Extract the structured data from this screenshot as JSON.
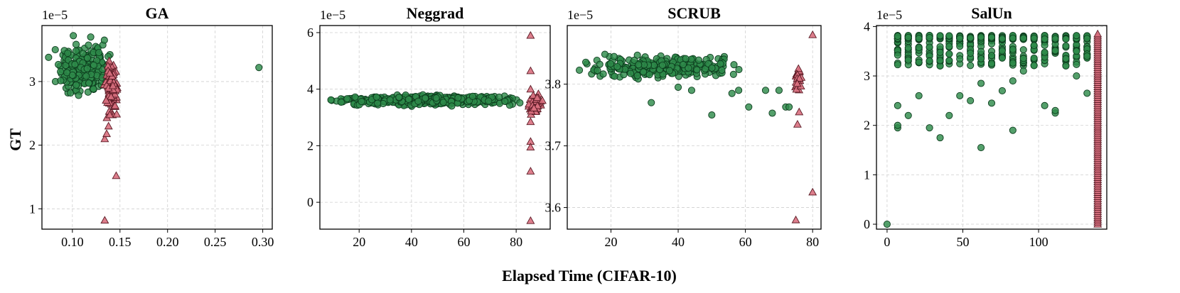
{
  "figure": {
    "xlabel": "Elapsed Time (CIFAR-10)",
    "ylabel": "GT"
  },
  "colors": {
    "green_fill": "#2e8b4a",
    "green_edge": "#0d3d1e",
    "red_fill": "#d9707f",
    "red_edge": "#5a1a24",
    "grid": "#cfcfcf"
  },
  "chart_data": [
    {
      "type": "scatter",
      "title": "GA",
      "y_scale_label": "1e−5",
      "xlim": [
        0.068,
        0.31
      ],
      "ylim": [
        0.68,
        3.88
      ],
      "xticks": [
        0.1,
        0.15,
        0.2,
        0.25,
        0.3
      ],
      "xtick_labels": [
        "0.10",
        "0.15",
        "0.20",
        "0.25",
        "0.30"
      ],
      "yticks": [
        1,
        2,
        3
      ],
      "ytick_labels": [
        "1",
        "2",
        "3"
      ],
      "series": [
        {
          "name": "green",
          "marker": "circle",
          "cluster": {
            "x": [
              0.08,
              0.143
            ],
            "y": [
              2.65,
              3.75
            ],
            "n": 230
          },
          "points": [
            [
              0.296,
              3.22
            ],
            [
              0.075,
              3.38
            ],
            [
              0.082,
              3.5
            ],
            [
              0.098,
              2.82
            ],
            [
              0.1,
              3.1
            ]
          ]
        },
        {
          "name": "red",
          "marker": "triangle",
          "cluster": {
            "x": [
              0.133,
              0.148
            ],
            "y": [
              2.25,
              3.55
            ],
            "n": 90
          },
          "points": [
            [
              0.134,
              0.82
            ],
            [
              0.146,
              1.52
            ],
            [
              0.134,
              2.1
            ],
            [
              0.136,
              2.18
            ],
            [
              0.138,
              2.3
            ]
          ]
        }
      ]
    },
    {
      "type": "scatter",
      "title": "Neggrad",
      "y_scale_label": "1e−5",
      "xlim": [
        5,
        93
      ],
      "ylim": [
        -0.95,
        6.25
      ],
      "xticks": [
        20,
        40,
        60,
        80
      ],
      "xtick_labels": [
        "20",
        "40",
        "60",
        "80"
      ],
      "yticks": [
        0,
        2,
        4,
        6
      ],
      "ytick_labels": [
        "0",
        "2",
        "4",
        "6"
      ],
      "series": [
        {
          "name": "green",
          "marker": "circle",
          "cluster": {
            "x": [
              8,
              85
            ],
            "y": [
              3.35,
              3.85
            ],
            "n": 380
          },
          "points": []
        },
        {
          "name": "red",
          "marker": "triangle",
          "cluster": {
            "x": [
              84.5,
              90
            ],
            "y": [
              3.0,
              3.9
            ],
            "n": 60
          },
          "points": [
            [
              85.5,
              5.9
            ],
            [
              85.5,
              4.65
            ],
            [
              85.5,
              2.85
            ],
            [
              85.5,
              2.15
            ],
            [
              85.5,
              1.95
            ],
            [
              85.5,
              1.1
            ],
            [
              85.5,
              -0.65
            ],
            [
              85.5,
              4.0
            ],
            [
              88,
              3.7
            ],
            [
              90,
              3.6
            ]
          ]
        }
      ]
    },
    {
      "type": "scatter",
      "title": "SCRUB",
      "y_scale_label": "1e−5",
      "xlim": [
        7,
        82.5
      ],
      "ylim": [
        3.565,
        3.895
      ],
      "xticks": [
        20,
        40,
        60,
        80
      ],
      "xtick_labels": [
        "20",
        "40",
        "60",
        "80"
      ],
      "yticks": [
        3.6,
        3.7,
        3.8
      ],
      "ytick_labels": [
        "3.6",
        "3.7",
        "3.8"
      ],
      "series": [
        {
          "name": "green",
          "marker": "circle",
          "cluster": {
            "x": [
              9,
              62
            ],
            "y": [
              3.805,
              3.85
            ],
            "n": 300
          },
          "points": [
            [
              32,
              3.77
            ],
            [
              50,
              3.75
            ],
            [
              61,
              3.763
            ],
            [
              68,
              3.753
            ],
            [
              72,
              3.763
            ],
            [
              73,
              3.763
            ],
            [
              66,
              3.79
            ],
            [
              70,
              3.79
            ],
            [
              58,
              3.79
            ],
            [
              56,
              3.785
            ],
            [
              44,
              3.79
            ],
            [
              40,
              3.795
            ]
          ]
        },
        {
          "name": "red",
          "marker": "triangle",
          "cluster": {
            "x": [
              74.5,
              77
            ],
            "y": [
              3.785,
              3.83
            ],
            "n": 25
          },
          "points": [
            [
              80,
              3.88
            ],
            [
              76,
              3.755
            ],
            [
              75.5,
              3.735
            ],
            [
              80,
              3.625
            ],
            [
              75,
              3.58
            ]
          ]
        }
      ]
    },
    {
      "type": "scatter",
      "title": "SalUn",
      "y_scale_label": "1e−5",
      "xlim": [
        -7,
        145
      ],
      "ylim": [
        -0.1,
        4.02
      ],
      "xticks": [
        0,
        50,
        100
      ],
      "xtick_labels": [
        "0",
        "50",
        "100"
      ],
      "yticks": [
        0,
        1,
        2,
        3,
        4
      ],
      "ytick_labels": [
        "0",
        "1",
        "2",
        "3",
        "4"
      ],
      "series": [
        {
          "name": "green",
          "marker": "circle",
          "columns": [
            7,
            14,
            21,
            28,
            35,
            41,
            48,
            55,
            62,
            69,
            76,
            83,
            90,
            97,
            104,
            111,
            118,
            125,
            132
          ],
          "column_y": [
            3.2,
            3.82
          ],
          "points": [
            [
              0,
              0.0
            ],
            [
              7,
              1.95
            ],
            [
              7,
              2.0
            ],
            [
              7,
              2.4
            ],
            [
              14,
              2.2
            ],
            [
              21,
              2.6
            ],
            [
              28,
              1.95
            ],
            [
              35,
              1.75
            ],
            [
              41,
              2.2
            ],
            [
              48,
              2.6
            ],
            [
              55,
              2.5
            ],
            [
              62,
              1.55
            ],
            [
              62,
              2.85
            ],
            [
              69,
              2.45
            ],
            [
              76,
              2.7
            ],
            [
              83,
              1.9
            ],
            [
              83,
              2.9
            ],
            [
              90,
              3.1
            ],
            [
              104,
              2.4
            ],
            [
              111,
              2.25
            ],
            [
              111,
              2.3
            ],
            [
              125,
              3.0
            ],
            [
              132,
              2.65
            ],
            [
              132,
              3.4
            ]
          ]
        },
        {
          "name": "red",
          "marker": "triangle",
          "column_x": 139,
          "column_y": [
            0.0,
            3.85
          ],
          "points": []
        }
      ]
    }
  ]
}
